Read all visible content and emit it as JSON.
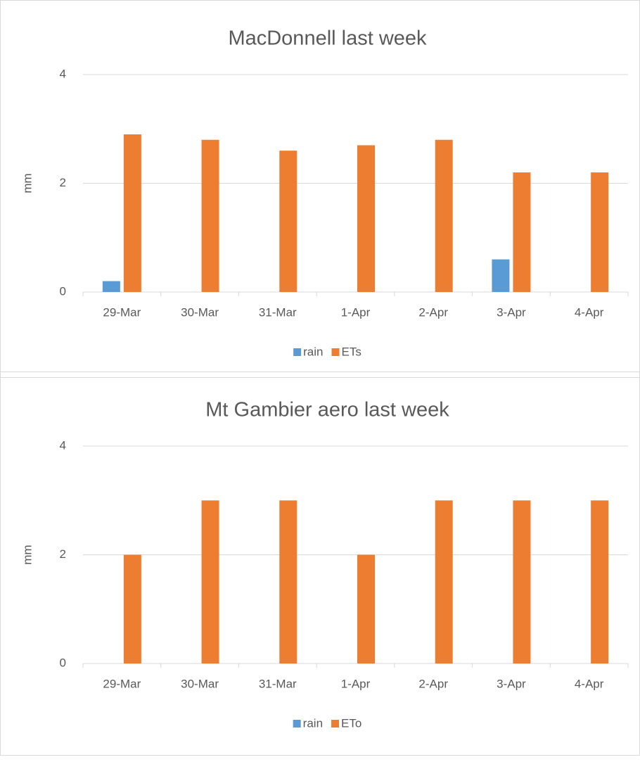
{
  "chart_data": [
    {
      "type": "bar",
      "title": "MacDonnell last week",
      "y_label": "mm",
      "categories": [
        "29-Mar",
        "30-Mar",
        "31-Mar",
        "1-Apr",
        "2-Apr",
        "3-Apr",
        "4-Apr"
      ],
      "series": [
        {
          "name": "rain",
          "color": "#5b9bd5",
          "values": [
            0.2,
            0,
            0,
            0,
            0,
            0.6,
            0
          ]
        },
        {
          "name": "ETs",
          "color": "#ed7d31",
          "values": [
            2.9,
            2.8,
            2.6,
            2.7,
            2.8,
            2.2,
            2.2
          ]
        }
      ],
      "ylim": [
        0,
        4
      ],
      "yticks": [
        0,
        2,
        4
      ],
      "grid": true,
      "legend": "bottom"
    },
    {
      "type": "bar",
      "title": "Mt Gambier aero last week",
      "y_label": "mm",
      "categories": [
        "29-Mar",
        "30-Mar",
        "31-Mar",
        "1-Apr",
        "2-Apr",
        "3-Apr",
        "4-Apr"
      ],
      "series": [
        {
          "name": "rain",
          "color": "#5b9bd5",
          "values": [
            0,
            0,
            0,
            0,
            0,
            0,
            0
          ]
        },
        {
          "name": "ETo",
          "color": "#ed7d31",
          "values": [
            2,
            3,
            3,
            2,
            3,
            3,
            3
          ]
        }
      ],
      "ylim": [
        0,
        4
      ],
      "yticks": [
        0,
        2,
        4
      ],
      "grid": true,
      "legend": "bottom"
    }
  ]
}
